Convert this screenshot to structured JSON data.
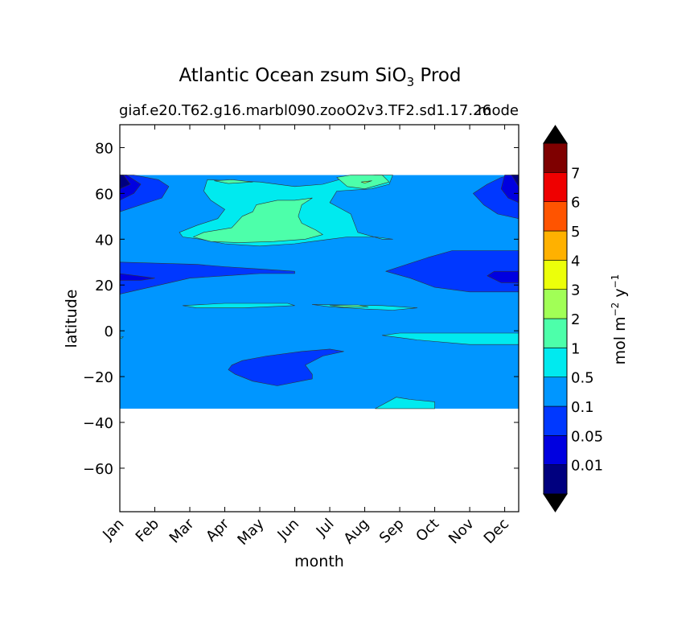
{
  "chart_data": {
    "type": "heatmap",
    "title": "Atlantic Ocean zsum SiO",
    "title_subscript": "3",
    "title_suffix": " Prod",
    "subtitle_left": "giaf.e20.T62.g16.marbl090.zooO2v3.TF2.sd1.17.26",
    "subtitle_right": "mode",
    "xlabel": "month",
    "ylabel": "latitude",
    "x_categories": [
      "Jan",
      "Feb",
      "Mar",
      "Apr",
      "May",
      "Jun",
      "Jul",
      "Aug",
      "Sep",
      "Oct",
      "Nov",
      "Dec"
    ],
    "yticks": [
      80,
      60,
      40,
      20,
      0,
      -20,
      -40,
      -60
    ],
    "ylim": [
      -79,
      90
    ],
    "data_lat_range": [
      -34,
      68
    ],
    "colorbar": {
      "label_main": "mol m",
      "label_exp1": "−2",
      "label_mid": " y",
      "label_exp2": "−1",
      "extend": "both",
      "levels": [
        0.01,
        0.05,
        0.1,
        0.5,
        1,
        2,
        3,
        4,
        5,
        6,
        7
      ],
      "tick_labels": [
        "0.01",
        "0.05",
        "0.1",
        "0.5",
        "1",
        "2",
        "3",
        "4",
        "5",
        "6",
        "7"
      ],
      "colors": [
        "#00007f",
        "#0000e0",
        "#0038ff",
        "#0096ff",
        "#00eaef",
        "#4dffaa",
        "#a1ff56",
        "#ecff0a",
        "#ffb100",
        "#ff5400",
        "#ef0000",
        "#7f0000"
      ],
      "under_color": "#000000",
      "over_color": "#000000"
    },
    "background_level_color": "#0096ff",
    "regions": [
      {
        "level": 2,
        "points": [
          [
            0,
            68
          ],
          [
            0.4,
            68
          ],
          [
            1.1,
            66
          ],
          [
            1.4,
            63
          ],
          [
            1.2,
            58
          ],
          [
            0.6,
            55
          ],
          [
            0,
            52
          ]
        ]
      },
      {
        "level": 1,
        "points": [
          [
            0,
            68
          ],
          [
            0.2,
            68
          ],
          [
            0.6,
            64
          ],
          [
            0.4,
            60
          ],
          [
            0,
            57
          ]
        ]
      },
      {
        "level": 0,
        "points": [
          [
            0,
            68
          ],
          [
            0.1,
            68
          ],
          [
            0.3,
            64
          ],
          [
            0,
            62
          ]
        ]
      },
      {
        "level": 2,
        "points": [
          [
            11.2,
            68
          ],
          [
            11.4,
            68
          ],
          [
            11.4,
            49
          ],
          [
            10.8,
            51
          ],
          [
            10.4,
            55
          ],
          [
            10.1,
            60
          ],
          [
            10.5,
            64
          ],
          [
            10.9,
            67
          ]
        ]
      },
      {
        "level": 1,
        "points": [
          [
            11.0,
            68
          ],
          [
            11.4,
            68
          ],
          [
            11.4,
            56
          ],
          [
            11.1,
            58
          ],
          [
            10.9,
            62
          ]
        ]
      },
      {
        "level": 0,
        "points": [
          [
            11.2,
            68
          ],
          [
            11.4,
            68
          ],
          [
            11.4,
            63
          ]
        ]
      },
      {
        "level": 4,
        "points": [
          [
            2.5,
            66
          ],
          [
            4.0,
            65
          ],
          [
            5.0,
            63
          ],
          [
            5.8,
            64
          ],
          [
            6.5,
            67
          ],
          [
            7.3,
            68
          ],
          [
            7.8,
            68
          ],
          [
            7.7,
            64
          ],
          [
            7.2,
            62
          ],
          [
            6.2,
            61
          ],
          [
            6.0,
            56
          ],
          [
            6.6,
            51
          ],
          [
            6.8,
            43
          ],
          [
            7.5,
            40
          ],
          [
            7.8,
            40
          ],
          [
            7.3,
            41
          ],
          [
            6.5,
            41
          ],
          [
            6.0,
            40
          ],
          [
            5.0,
            38
          ],
          [
            4.0,
            37
          ],
          [
            3.0,
            38
          ],
          [
            2.3,
            40
          ],
          [
            1.8,
            41
          ],
          [
            1.7,
            43
          ],
          [
            2.2,
            46
          ],
          [
            2.8,
            49
          ],
          [
            3.0,
            53
          ],
          [
            2.6,
            57
          ],
          [
            2.4,
            61
          ]
        ]
      },
      {
        "level": 5,
        "points": [
          [
            6.2,
            67
          ],
          [
            6.6,
            68
          ],
          [
            7.5,
            68
          ],
          [
            7.7,
            65
          ],
          [
            7.0,
            62
          ],
          [
            6.5,
            63
          ]
        ]
      },
      {
        "level": 6,
        "points": [
          [
            6.9,
            65
          ],
          [
            7.2,
            65.5
          ],
          [
            7.0,
            64.5
          ]
        ]
      },
      {
        "level": 5,
        "points": [
          [
            2.7,
            65.5
          ],
          [
            3.2,
            66
          ],
          [
            3.8,
            65
          ],
          [
            3.1,
            64.3
          ]
        ]
      },
      {
        "level": 5,
        "points": [
          [
            2.1,
            41
          ],
          [
            2.4,
            43
          ],
          [
            3.2,
            45
          ],
          [
            3.5,
            50
          ],
          [
            3.8,
            52
          ],
          [
            3.9,
            55
          ],
          [
            4.5,
            57
          ],
          [
            5.0,
            57
          ],
          [
            5.5,
            58
          ],
          [
            5.2,
            55
          ],
          [
            5.1,
            50
          ],
          [
            5.2,
            47
          ],
          [
            5.6,
            44
          ],
          [
            5.8,
            42
          ],
          [
            5.3,
            40
          ],
          [
            4.4,
            39
          ],
          [
            3.4,
            38.5
          ],
          [
            2.6,
            39
          ]
        ]
      },
      {
        "level": 2,
        "points": [
          [
            0,
            30
          ],
          [
            2.2,
            29
          ],
          [
            3.0,
            28
          ],
          [
            4.0,
            27
          ],
          [
            5.0,
            26
          ],
          [
            5.0,
            25
          ],
          [
            4.0,
            25
          ],
          [
            3.0,
            24
          ],
          [
            2.0,
            23
          ],
          [
            0,
            16
          ]
        ]
      },
      {
        "level": 1,
        "points": [
          [
            0,
            25
          ],
          [
            0.5,
            24
          ],
          [
            1.0,
            23
          ],
          [
            0.6,
            22
          ],
          [
            0,
            22
          ]
        ]
      },
      {
        "level": 2,
        "points": [
          [
            11.4,
            35
          ],
          [
            9.5,
            35
          ],
          [
            8.8,
            32
          ],
          [
            8.2,
            29
          ],
          [
            7.6,
            26
          ],
          [
            8.3,
            23
          ],
          [
            9.0,
            19
          ],
          [
            10.0,
            17
          ],
          [
            11.4,
            17
          ]
        ]
      },
      {
        "level": 1,
        "points": [
          [
            11.4,
            26
          ],
          [
            10.7,
            26
          ],
          [
            10.5,
            24
          ],
          [
            10.9,
            21
          ],
          [
            11.4,
            21
          ]
        ]
      },
      {
        "level": 4,
        "points": [
          [
            1.8,
            11
          ],
          [
            3.0,
            12
          ],
          [
            4.8,
            12
          ],
          [
            5.0,
            11
          ],
          [
            3.5,
            10
          ],
          [
            2.2,
            10
          ]
        ]
      },
      {
        "level": 4,
        "points": [
          [
            5.5,
            11.5
          ],
          [
            7.5,
            11
          ],
          [
            8.5,
            10
          ],
          [
            7.8,
            9
          ],
          [
            7.0,
            9.5
          ],
          [
            6.0,
            10.5
          ]
        ]
      },
      {
        "level": 5,
        "points": [
          [
            6.0,
            11
          ],
          [
            6.8,
            11.3
          ],
          [
            7.1,
            10.5
          ],
          [
            6.4,
            10.3
          ]
        ]
      },
      {
        "level": 4,
        "points": [
          [
            11.4,
            -1
          ],
          [
            9.5,
            -1
          ],
          [
            8.0,
            -1
          ],
          [
            7.5,
            -2
          ],
          [
            8.5,
            -4
          ],
          [
            10.0,
            -6
          ],
          [
            11.4,
            -6
          ]
        ]
      },
      {
        "level": 4,
        "points": [
          [
            7.3,
            -34
          ],
          [
            7.9,
            -29
          ],
          [
            8.3,
            -30
          ],
          [
            9.0,
            -31
          ],
          [
            9.0,
            -34
          ]
        ]
      },
      {
        "level": 2,
        "points": [
          [
            3.2,
            -15
          ],
          [
            3.5,
            -13
          ],
          [
            4.2,
            -11
          ],
          [
            5.2,
            -9
          ],
          [
            6.0,
            -8
          ],
          [
            6.4,
            -9
          ],
          [
            5.8,
            -11
          ],
          [
            5.3,
            -15
          ],
          [
            5.5,
            -19
          ],
          [
            5.5,
            -21
          ],
          [
            4.5,
            -24
          ],
          [
            3.8,
            -22
          ],
          [
            3.3,
            -19
          ],
          [
            3.1,
            -17
          ]
        ]
      },
      {
        "level": 4,
        "points": [
          [
            -0.05,
            -3
          ],
          [
            0.1,
            -2.6
          ],
          [
            0.05,
            -3.4
          ]
        ]
      }
    ]
  }
}
